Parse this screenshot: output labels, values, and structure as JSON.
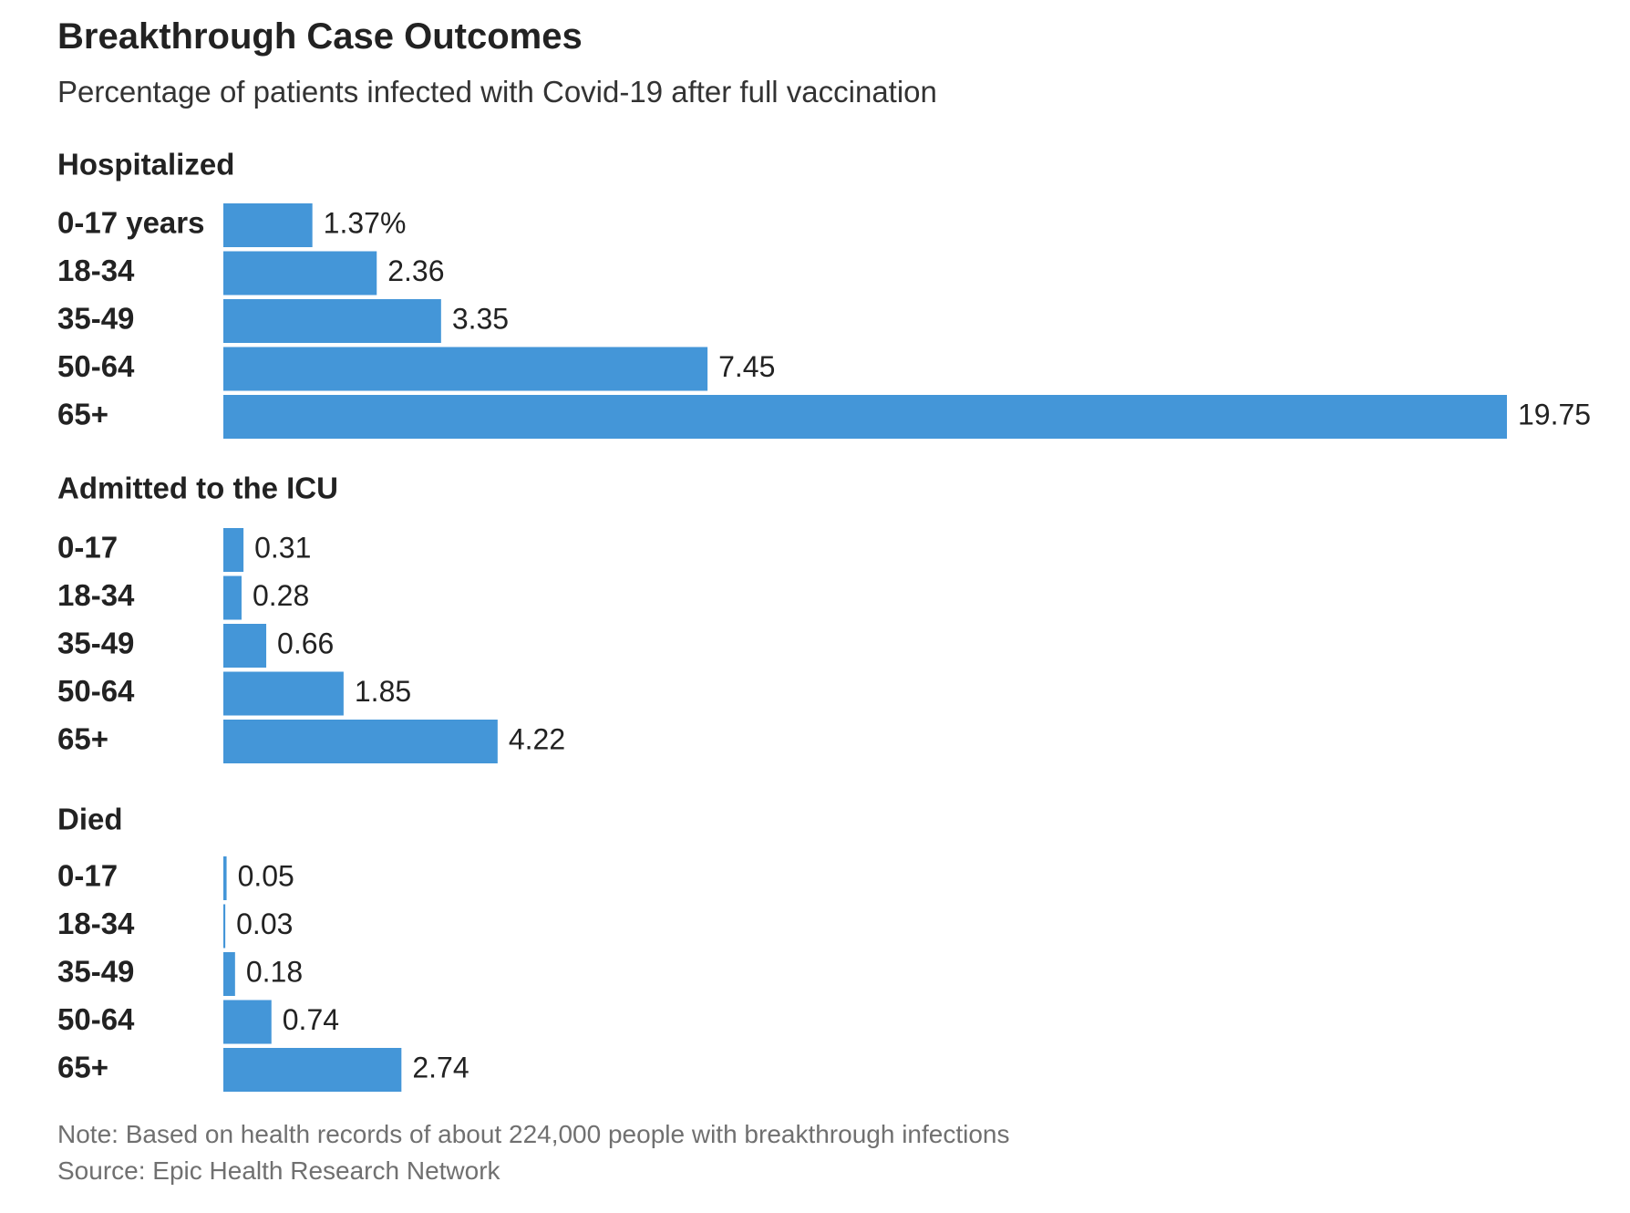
{
  "title": "Breakthrough Case Outcomes",
  "subtitle": "Percentage of patients infected with Covid-19 after full vaccination",
  "note": "Note: Based on health records of about 224,000 people with breakthrough infections",
  "source": "Source: Epic Health Research Network",
  "colors": {
    "bar": "#4496d8",
    "text": "#222222",
    "muted": "#707070"
  },
  "chart_data": [
    {
      "type": "bar",
      "orientation": "horizontal",
      "title": "Hospitalized",
      "categories": [
        "0-17 years",
        "18-34",
        "35-49",
        "50-64",
        "65+"
      ],
      "values": [
        1.37,
        2.36,
        3.35,
        7.45,
        19.75
      ],
      "value_labels": [
        "1.37%",
        "2.36",
        "3.35",
        "7.45",
        "19.75"
      ],
      "unit": "%"
    },
    {
      "type": "bar",
      "orientation": "horizontal",
      "title": "Admitted to the ICU",
      "categories": [
        "0-17",
        "18-34",
        "35-49",
        "50-64",
        "65+"
      ],
      "values": [
        0.31,
        0.28,
        0.66,
        1.85,
        4.22
      ],
      "value_labels": [
        "0.31",
        "0.28",
        "0.66",
        "1.85",
        "4.22"
      ],
      "unit": "%"
    },
    {
      "type": "bar",
      "orientation": "horizontal",
      "title": "Died",
      "categories": [
        "0-17",
        "18-34",
        "35-49",
        "50-64",
        "65+"
      ],
      "values": [
        0.05,
        0.03,
        0.18,
        0.74,
        2.74
      ],
      "value_labels": [
        "0.05",
        "0.03",
        "0.18",
        "0.74",
        "2.74"
      ],
      "unit": "%"
    }
  ]
}
